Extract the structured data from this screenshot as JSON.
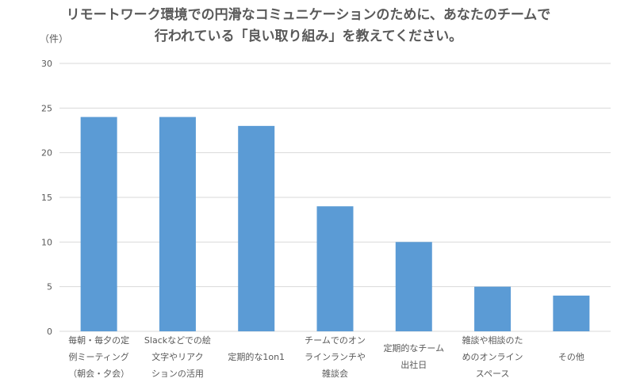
{
  "chart_data": {
    "type": "bar",
    "title_lines": [
      "リモートワーク環境での円滑なコミュニケーションのために、あなたのチームで",
      "行われている「良い取り組み」を教えてください。"
    ],
    "ylabel": "（件）",
    "xlabel": "",
    "ylim": [
      0,
      30
    ],
    "yticks": [
      0,
      5,
      10,
      15,
      20,
      25,
      30
    ],
    "grid": true,
    "legend": "none",
    "categories": [
      [
        "毎朝・毎夕の定",
        "例ミーティング",
        "（朝会・夕会）"
      ],
      [
        "Slackなどでの絵",
        "文字やリアク",
        "ションの活用"
      ],
      [
        "定期的な1on1"
      ],
      [
        "チームでのオン",
        "ラインランチや",
        "雑談会"
      ],
      [
        "定期的なチーム",
        "出社日"
      ],
      [
        "雑談や相談のた",
        "めのオンライン",
        "スペース"
      ],
      [
        "その他"
      ]
    ],
    "values": [
      24,
      24,
      23,
      14,
      10,
      5,
      4
    ],
    "colors": {
      "bar": "#5B9BD5",
      "grid": "#D9D9D9",
      "text": "#595959"
    }
  }
}
